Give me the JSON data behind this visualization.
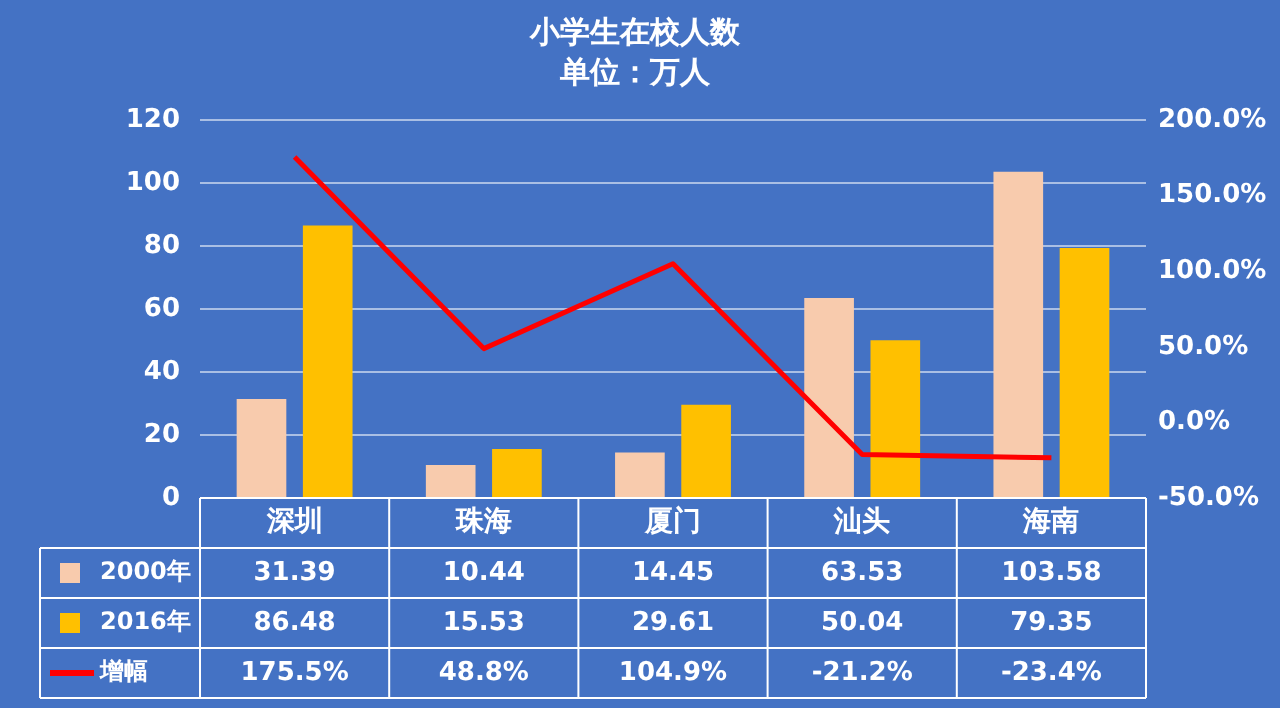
{
  "chart_data": {
    "type": "bar",
    "title": "小学生在校人数",
    "subtitle": "单位：万人",
    "categories": [
      "深圳",
      "珠海",
      "厦门",
      "汕头",
      "海南"
    ],
    "series": [
      {
        "name": "2000年",
        "color": "#f8cbad",
        "values": [
          31.39,
          10.44,
          14.45,
          63.53,
          103.58
        ],
        "value_labels": [
          "31.39",
          "10.44",
          "14.45",
          "63.53",
          "103.58"
        ]
      },
      {
        "name": "2016年",
        "color": "#ffc000",
        "values": [
          86.48,
          15.53,
          29.61,
          50.04,
          79.35
        ],
        "value_labels": [
          "86.48",
          "15.53",
          "29.61",
          "50.04",
          "79.35"
        ]
      },
      {
        "name": "增幅",
        "type": "line",
        "axis": "y2",
        "color": "#ff0000",
        "values": [
          175.5,
          48.8,
          104.9,
          -21.2,
          -23.4
        ],
        "value_labels": [
          "175.5%",
          "48.8%",
          "104.9%",
          "-21.2%",
          "-23.4%"
        ]
      }
    ],
    "ylim": [
      0,
      120
    ],
    "yticks": [
      0,
      20,
      40,
      60,
      80,
      100,
      120
    ],
    "y2lim": [
      -50,
      200
    ],
    "y2ticks": [
      {
        "value": -50,
        "label": "-50.0%"
      },
      {
        "value": 0,
        "label": "0.0%"
      },
      {
        "value": 50,
        "label": "50.0%"
      },
      {
        "value": 100,
        "label": "100.0%"
      },
      {
        "value": 150,
        "label": "150.0%"
      },
      {
        "value": 200,
        "label": "200.0%"
      }
    ],
    "grid": "y",
    "legend": "bottom",
    "marker": "none",
    "line_style": "solid"
  }
}
